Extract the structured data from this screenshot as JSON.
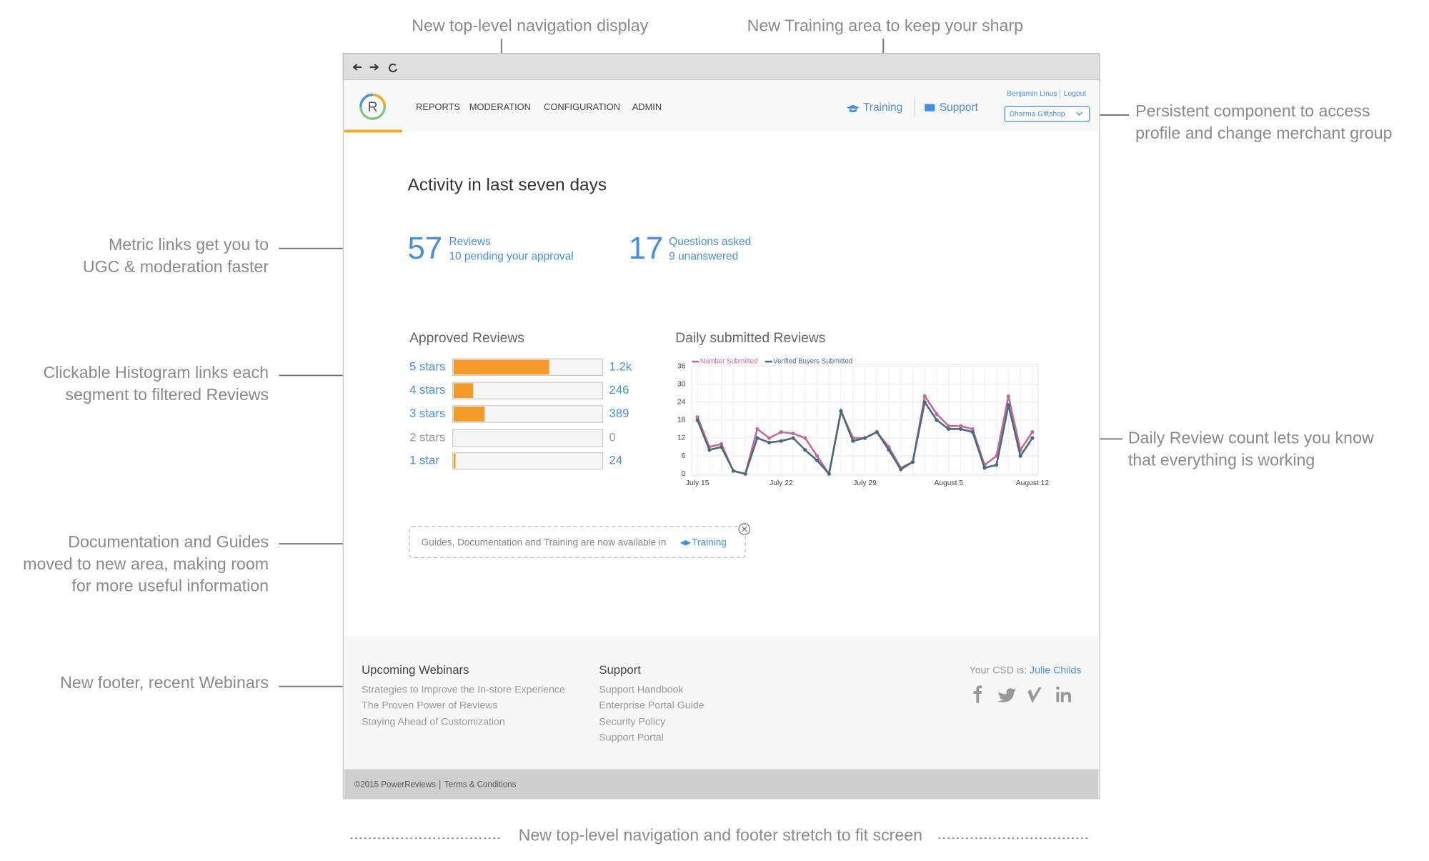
{
  "annotations": {
    "top_nav": "New top-level navigation display",
    "training": "New Training area to keep your sharp",
    "persistent": [
      "Persistent component to access",
      "profile and change merchant group"
    ],
    "metrics": [
      "Metric links get you to",
      "UGC & moderation faster"
    ],
    "histogram": [
      "Clickable Histogram links each",
      "segment to filtered Reviews"
    ],
    "docs": [
      "Documentation and Guides",
      "moved to new area, making room",
      "for more useful information"
    ],
    "daily": [
      "Daily Review count lets you know",
      "that everything is working"
    ],
    "footer": "New footer, recent Webinars",
    "stretch": "New top-level navigation and footer stretch to fit screen"
  },
  "nav": {
    "logo": "R",
    "items": [
      "REPORTS",
      "MODERATION",
      "CONFIGURATION",
      "ADMIN"
    ],
    "training": "Training",
    "support": "Support",
    "user": "Benjamin Linus",
    "logout": "Logout",
    "merchant": "Dharma Giftshop"
  },
  "heading": "Activity in last seven days",
  "metrics": [
    {
      "value": 57,
      "label": "Reviews",
      "sub": "10 pending your approval"
    },
    {
      "value": 17,
      "label": "Questions asked",
      "sub": "9 unanswered"
    }
  ],
  "chart_data": [
    {
      "type": "hbar",
      "title": "Approved Reviews",
      "categories": [
        "5 stars",
        "4 stars",
        "3 stars",
        "2 stars",
        "1 star"
      ],
      "values": [
        1200,
        246,
        389,
        0,
        24
      ],
      "value_labels": [
        "1.2k",
        "246",
        "389",
        "0",
        "24"
      ],
      "color": "#f39c2b"
    },
    {
      "type": "line",
      "title": "Daily submitted Reviews",
      "categories": [
        "July 15",
        null,
        null,
        null,
        null,
        null,
        null,
        "July 22",
        null,
        null,
        null,
        null,
        null,
        null,
        "July 29",
        null,
        null,
        null,
        null,
        null,
        null,
        "August 5",
        null,
        null,
        null,
        null,
        null,
        null,
        "August 12"
      ],
      "series": [
        {
          "name": "Number Submitted",
          "color": "#c46b9e",
          "values": [
            19,
            9,
            10,
            1,
            0,
            15,
            12,
            14,
            13.5,
            12,
            6,
            0,
            21,
            12,
            12,
            14,
            9,
            2,
            4,
            26,
            20,
            16,
            16,
            15,
            3,
            6,
            26,
            8,
            14
          ]
        },
        {
          "name": "Verified Buyers Submitted",
          "color": "#4a6a7a",
          "values": [
            18,
            8,
            9,
            1,
            0,
            12,
            10.5,
            11,
            12,
            8,
            4.5,
            0,
            21,
            11,
            12,
            14,
            8,
            1.5,
            4,
            24,
            18,
            15,
            15,
            14,
            2,
            3,
            23,
            6,
            12
          ]
        }
      ],
      "ylim": [
        0,
        36
      ],
      "yticks": [
        0,
        6,
        12,
        18,
        24,
        30,
        36
      ],
      "grid": true,
      "legend": "top-left"
    }
  ],
  "notice": {
    "text": "Guides, Documentation and Training are now available in",
    "link": "Training"
  },
  "footer": {
    "webinars": {
      "title": "Upcoming Webinars",
      "items": [
        "Strategies to Improve the In-store Experience",
        "The Proven Power of Reviews",
        "Staying Ahead of Customization"
      ]
    },
    "support": {
      "title": "Support",
      "items": [
        "Support Handbook",
        "Enterprise Portal Guide",
        "Security Policy",
        "Support Portal"
      ]
    },
    "csd_label": "Your CSD is:",
    "csd_name": "Julie Childs",
    "copyright": "©2015 PowerReviews",
    "terms": "Terms & Conditions"
  }
}
